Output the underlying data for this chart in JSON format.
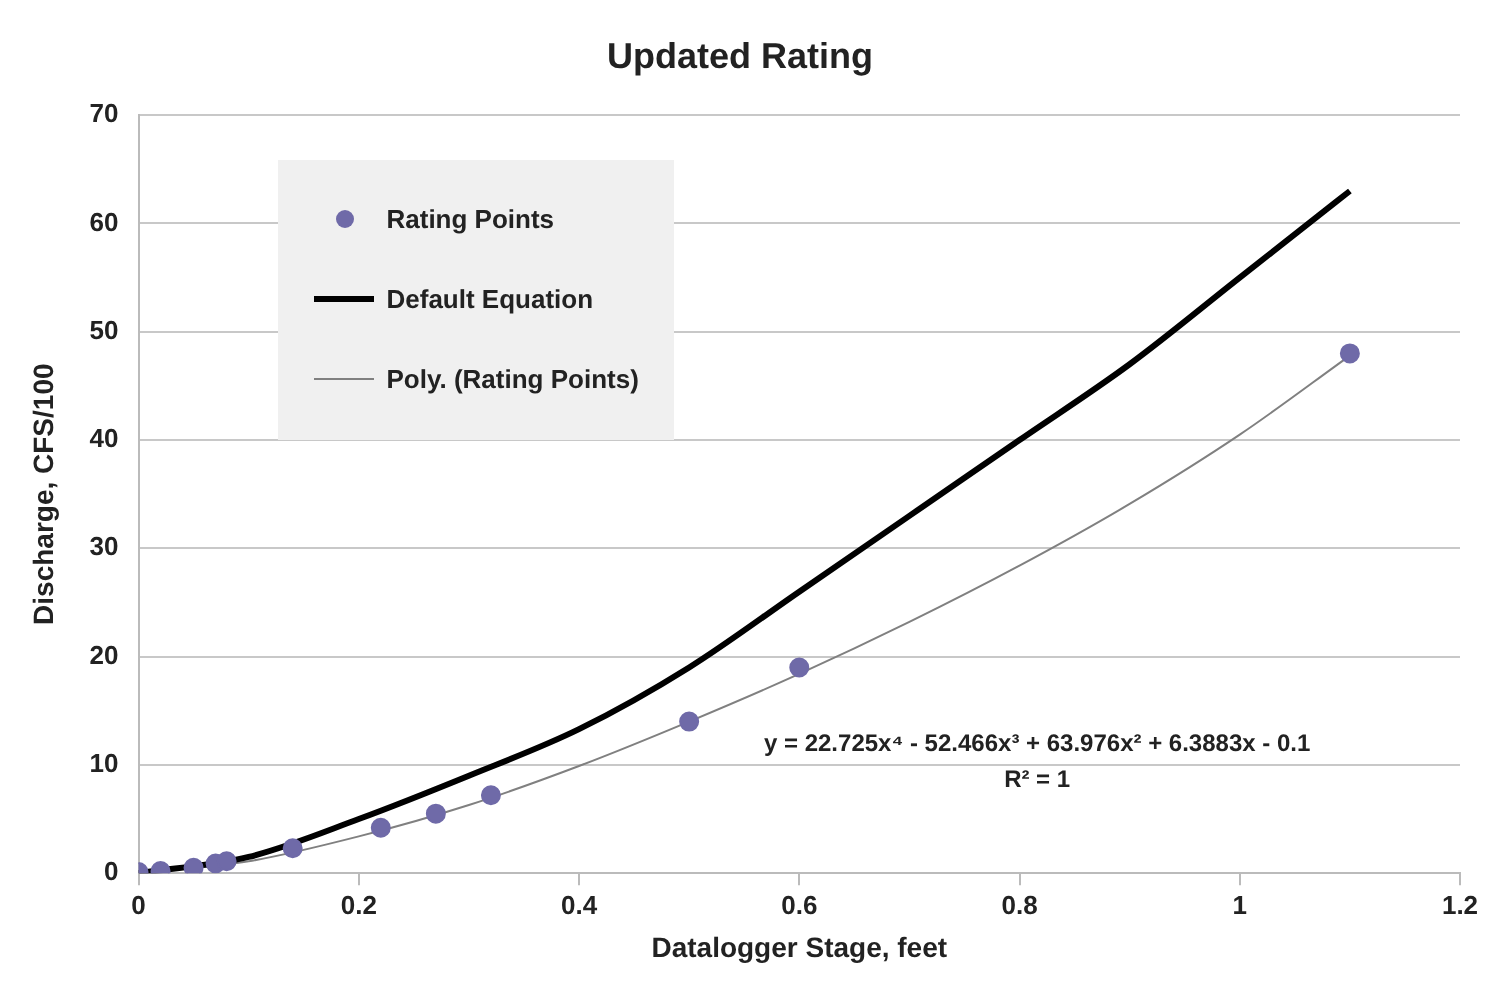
{
  "chart_data": {
    "type": "scatter",
    "title": "Updated Rating",
    "xlabel": "Datalogger Stage, feet",
    "ylabel": "Discharge, CFS/100",
    "xlim": [
      0,
      1.2
    ],
    "xticks": [
      0,
      0.2,
      0.4,
      0.6,
      0.8,
      1,
      1.2
    ],
    "ylim": [
      0,
      70
    ],
    "yticks": [
      0,
      10,
      20,
      30,
      40,
      50,
      60,
      70
    ],
    "grid": "y",
    "legend": "top left",
    "series": [
      {
        "name": "Rating Points",
        "marker": "circle",
        "color": "#6f6aa8",
        "x": [
          0,
          0.02,
          0.05,
          0.07,
          0.08,
          0.14,
          0.22,
          0.27,
          0.32,
          0.5,
          0.6,
          1.1
        ],
        "values": [
          0.1,
          0.2,
          0.5,
          0.9,
          1.1,
          2.3,
          4.2,
          5.5,
          7.2,
          14,
          19,
          48
        ]
      },
      {
        "name": "Default Equation",
        "type": "line",
        "marker": "none",
        "color": "#000000",
        "x": [
          0,
          0.1,
          0.2,
          0.3,
          0.4,
          0.5,
          0.6,
          0.7,
          0.8,
          0.9,
          1,
          1.1
        ],
        "values": [
          0,
          1.5,
          5,
          9,
          13.3,
          19,
          26,
          33,
          40,
          47,
          55,
          63
        ]
      },
      {
        "name": "Poly. (Rating Points)",
        "type": "line",
        "marker": "none",
        "color": "#808080",
        "x": [
          0,
          0.1,
          0.2,
          0.3,
          0.4,
          0.5,
          0.6,
          0.7,
          0.8,
          0.9,
          1,
          1.1
        ],
        "values": [
          0,
          1.1,
          3.4,
          6.3,
          9.9,
          14,
          18.4,
          23.2,
          28.4,
          34.1,
          40.5,
          47.8
        ]
      }
    ],
    "annotations": [
      "y = 22.725x⁴ - 52.466x³ + 63.976x² + 6.3883x - 0.1",
      "R² = 1"
    ]
  }
}
